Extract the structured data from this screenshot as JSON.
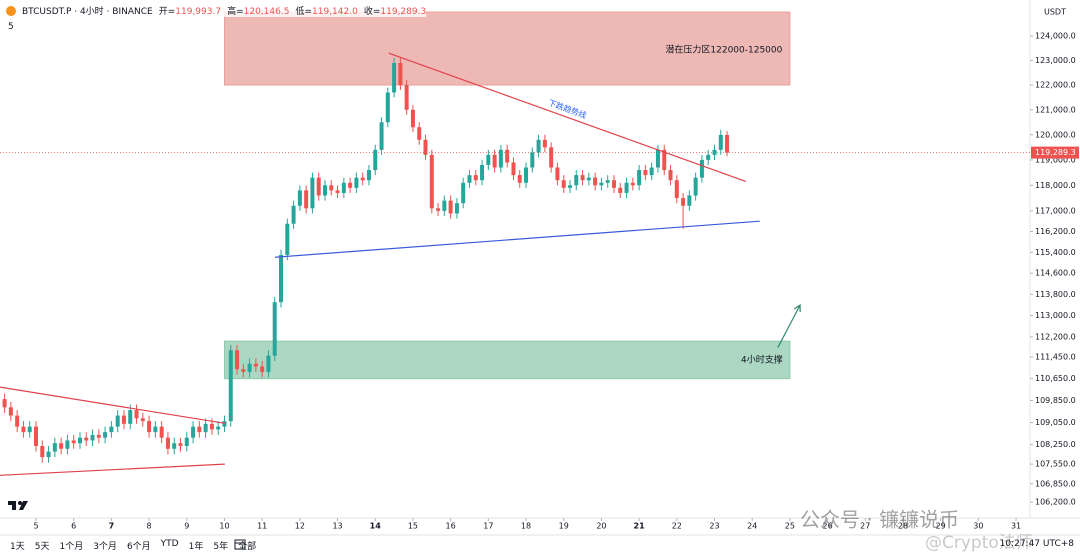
{
  "chart_data": {
    "type": "candlestick",
    "symbol_title": "BTCUSDT.P · 4小时 · BINANCE",
    "indicator": "5",
    "ohlc_legend": [
      {
        "label": "开",
        "value": "119,993.7"
      },
      {
        "label": "高",
        "value": "120,146.5"
      },
      {
        "label": "低",
        "value": "119,142.0"
      },
      {
        "label": "收",
        "value": "119,289.3"
      }
    ],
    "currency": "USDT",
    "up_color": "#26a69a",
    "down_color": "#ef5350",
    "log_scale": true,
    "grid": false,
    "xlim": [
      4.045,
      31.37
    ],
    "xticks": [
      5,
      6,
      7,
      8,
      9,
      10,
      11,
      12,
      13,
      14,
      15,
      16,
      17,
      18,
      19,
      20,
      21,
      22,
      23,
      24,
      25,
      26,
      27,
      28,
      29,
      30,
      31
    ],
    "xticks_bold": [
      7,
      14,
      21
    ],
    "ylim": [
      105640,
      125500
    ],
    "yticks": [
      {
        "value": 124000,
        "label": "124,000.0"
      },
      {
        "value": 123000,
        "label": "123,000.0"
      },
      {
        "value": 122000,
        "label": "122,000.0"
      },
      {
        "value": 121000,
        "label": "121,000.0"
      },
      {
        "value": 120000,
        "label": "120,000.0"
      },
      {
        "value": 119000,
        "label": "119,000.0"
      },
      {
        "value": 118000,
        "label": "118,000.0"
      },
      {
        "value": 117000,
        "label": "117,000.0"
      },
      {
        "value": 116200,
        "label": "116,200.0"
      },
      {
        "value": 115400,
        "label": "115,400.0"
      },
      {
        "value": 114600,
        "label": "114,600.0"
      },
      {
        "value": 113800,
        "label": "113,800.0"
      },
      {
        "value": 113000,
        "label": "113,000.0"
      },
      {
        "value": 112200,
        "label": "112,200.0"
      },
      {
        "value": 111450,
        "label": "111,450.0"
      },
      {
        "value": 110650,
        "label": "110,650.0"
      },
      {
        "value": 109850,
        "label": "109,850.0"
      },
      {
        "value": 109050,
        "label": "109,050.0"
      },
      {
        "value": 108250,
        "label": "108,250.0"
      },
      {
        "value": 107550,
        "label": "107,550.0"
      },
      {
        "value": 106850,
        "label": "106,850.0"
      },
      {
        "value": 106200,
        "label": "106,200.0"
      }
    ],
    "last_price": {
      "value": 119289.3,
      "label": "119,289.3"
    },
    "x": [
      4.167,
      4.333,
      4.5,
      4.667,
      4.833,
      5,
      5.167,
      5.333,
      5.5,
      5.667,
      5.833,
      6,
      6.167,
      6.333,
      6.5,
      6.667,
      6.833,
      7,
      7.167,
      7.333,
      7.5,
      7.667,
      7.833,
      8,
      8.167,
      8.333,
      8.5,
      8.667,
      8.833,
      9,
      9.167,
      9.333,
      9.5,
      9.667,
      9.833,
      10,
      10.167,
      10.333,
      10.5,
      10.667,
      10.833,
      11,
      11.167,
      11.333,
      11.5,
      11.667,
      11.833,
      12,
      12.167,
      12.333,
      12.5,
      12.667,
      12.833,
      13,
      13.167,
      13.333,
      13.5,
      13.667,
      13.833,
      14,
      14.167,
      14.333,
      14.5,
      14.667,
      14.833,
      15,
      15.167,
      15.333,
      15.5,
      15.667,
      15.833,
      16,
      16.167,
      16.333,
      16.5,
      16.667,
      16.833,
      17,
      17.167,
      17.333,
      17.5,
      17.667,
      17.833,
      18,
      18.167,
      18.333,
      18.5,
      18.667,
      18.833,
      19,
      19.167,
      19.333,
      19.5,
      19.667,
      19.833,
      20,
      20.167,
      20.333,
      20.5,
      20.667,
      20.833,
      21,
      21.167,
      21.333,
      21.5,
      21.667,
      21.833,
      22,
      22.167,
      22.333,
      22.5,
      22.667,
      22.833,
      23,
      23.167,
      23.333
    ],
    "open": [
      109900,
      109600,
      109300,
      108900,
      108700,
      108900,
      108200,
      107800,
      108000,
      108300,
      108100,
      108400,
      108300,
      108500,
      108400,
      108600,
      108500,
      108700,
      108900,
      109300,
      109000,
      109500,
      109200,
      109100,
      108700,
      108900,
      108500,
      108100,
      108300,
      108200,
      108500,
      108900,
      108700,
      109000,
      108800,
      108900,
      109100,
      111700,
      111000,
      110900,
      111200,
      111100,
      110900,
      111500,
      113500,
      115300,
      116500,
      117200,
      117800,
      117100,
      118300,
      117600,
      118000,
      117800,
      117700,
      118100,
      117900,
      118300,
      118200,
      118600,
      119400,
      120500,
      121700,
      122900,
      122000,
      121000,
      120300,
      119800,
      119200,
      117100,
      117000,
      117400,
      116900,
      117300,
      118100,
      118400,
      118200,
      118800,
      119200,
      118700,
      119400,
      118900,
      118400,
      118100,
      118700,
      119300,
      119800,
      119500,
      118700,
      118200,
      117900,
      118000,
      118400,
      118200,
      118300,
      118000,
      118100,
      118200,
      117900,
      117700,
      118100,
      118000,
      118600,
      118400,
      118700,
      119400,
      118600,
      118200,
      117500,
      117200,
      117600,
      118300,
      119000,
      119200,
      119400,
      119993.7
    ],
    "high": [
      110100,
      109800,
      109500,
      109100,
      109100,
      109100,
      108400,
      108200,
      108500,
      108500,
      108600,
      108600,
      108700,
      108700,
      108800,
      108800,
      108900,
      109100,
      109500,
      109500,
      109700,
      109700,
      109400,
      109300,
      109100,
      109100,
      108700,
      108500,
      108500,
      108700,
      109100,
      109100,
      109200,
      109200,
      109100,
      109300,
      111900,
      111900,
      111200,
      111400,
      111400,
      111300,
      111700,
      113700,
      115500,
      116700,
      117400,
      118000,
      118000,
      118500,
      118500,
      118200,
      118200,
      118000,
      118300,
      118300,
      118500,
      118500,
      118800,
      119600,
      120700,
      121900,
      123100,
      123100,
      122200,
      121200,
      120500,
      120000,
      119400,
      117300,
      117600,
      117600,
      117500,
      118300,
      118600,
      118600,
      119000,
      119400,
      119400,
      119600,
      119600,
      119100,
      118600,
      118900,
      119500,
      120000,
      120000,
      119700,
      118900,
      118400,
      118200,
      118600,
      118600,
      118500,
      118500,
      118300,
      118400,
      118400,
      118100,
      118300,
      118300,
      118800,
      118800,
      118900,
      119600,
      119600,
      118800,
      118400,
      117700,
      117800,
      118500,
      119200,
      119400,
      119600,
      120200,
      120146.5
    ],
    "low": [
      109400,
      109100,
      108700,
      108500,
      108500,
      108000,
      107600,
      107600,
      107800,
      107900,
      107900,
      108100,
      108100,
      108200,
      108200,
      108300,
      108300,
      108500,
      108700,
      108800,
      108800,
      109000,
      108900,
      108500,
      108500,
      108300,
      107900,
      107900,
      108000,
      108000,
      108300,
      108500,
      108500,
      108600,
      108600,
      108700,
      108900,
      110800,
      110700,
      110700,
      110900,
      110700,
      110700,
      111300,
      113300,
      115100,
      116300,
      117000,
      116900,
      116900,
      117400,
      117400,
      117600,
      117500,
      117500,
      117700,
      117700,
      118000,
      118000,
      118400,
      119200,
      120300,
      121500,
      121800,
      120800,
      120100,
      119600,
      119000,
      116900,
      116800,
      116800,
      116700,
      116700,
      117100,
      117900,
      118000,
      118000,
      118600,
      118500,
      118500,
      118700,
      118200,
      117900,
      117900,
      118500,
      119100,
      119300,
      118500,
      118000,
      117700,
      117700,
      117800,
      118000,
      118000,
      117800,
      117800,
      117900,
      117700,
      117500,
      117500,
      117800,
      117800,
      118200,
      118200,
      118500,
      118400,
      118000,
      117300,
      116300,
      117000,
      117400,
      118100,
      118800,
      119000,
      119200,
      119142
    ],
    "close": [
      109600,
      109300,
      108900,
      108700,
      108900,
      108200,
      107800,
      108000,
      108300,
      108100,
      108400,
      108300,
      108500,
      108400,
      108600,
      108500,
      108700,
      108900,
      109300,
      109000,
      109500,
      109200,
      109100,
      108700,
      108900,
      108500,
      108100,
      108300,
      108200,
      108500,
      108900,
      108700,
      109000,
      108800,
      108900,
      109100,
      111700,
      111000,
      110900,
      111200,
      111100,
      110900,
      111500,
      113500,
      115300,
      116500,
      117200,
      117800,
      117100,
      118300,
      117600,
      118000,
      117800,
      117700,
      118100,
      117900,
      118300,
      118200,
      118600,
      119400,
      120500,
      121700,
      122900,
      122000,
      121000,
      120300,
      119800,
      119200,
      117100,
      117000,
      117400,
      116900,
      117300,
      118100,
      118400,
      118200,
      118800,
      119200,
      118700,
      119400,
      118900,
      118400,
      118100,
      118700,
      119300,
      119800,
      119500,
      118700,
      118200,
      117900,
      118000,
      118400,
      118200,
      118300,
      118000,
      118100,
      118200,
      117900,
      117700,
      118100,
      118000,
      118600,
      118400,
      118700,
      119400,
      118600,
      118200,
      117500,
      117200,
      117600,
      118300,
      119000,
      119200,
      119400,
      119993.7,
      119289.3
    ],
    "zones": [
      {
        "label": "潜在压力区122000-125000",
        "low": 122000,
        "high": 125000,
        "x": [
          10,
          25
        ],
        "color": "#e8a29c"
      },
      {
        "label": "4小时支撑",
        "low": 110650,
        "high": 112040,
        "x": [
          10,
          25
        ],
        "color": "#8fcaaf"
      }
    ],
    "lines": [
      {
        "label": "下跌趋势线",
        "x": [
          14.36,
          23.83
        ],
        "y": [
          123300,
          118150
        ],
        "color": "#e0424b",
        "label_color": "#2962ff"
      },
      {
        "x": [
          11.34,
          24.2
        ],
        "y": [
          115210,
          116600
        ],
        "color": "#3b5bdb"
      },
      {
        "x": [
          4.045,
          10.01
        ],
        "y": [
          110340,
          109020
        ],
        "color": "#e0424b"
      },
      {
        "x": [
          4.045,
          10.01
        ],
        "y": [
          107150,
          107550
        ],
        "color": "#e0424b"
      }
    ],
    "arrow": {
      "x": [
        24.68,
        25.27
      ],
      "y": [
        111800,
        113390
      ],
      "color": "#2e8b6f"
    }
  },
  "toolbar": {
    "ranges": [
      "1天",
      "5天",
      "1个月",
      "3个月",
      "6个月",
      "YTD",
      "1年",
      "5年",
      "全部"
    ],
    "clock": "10:27:47 UTC+8"
  },
  "watermark": [
    "公众号 · 镰镰说币",
    "@Crypto法师"
  ]
}
